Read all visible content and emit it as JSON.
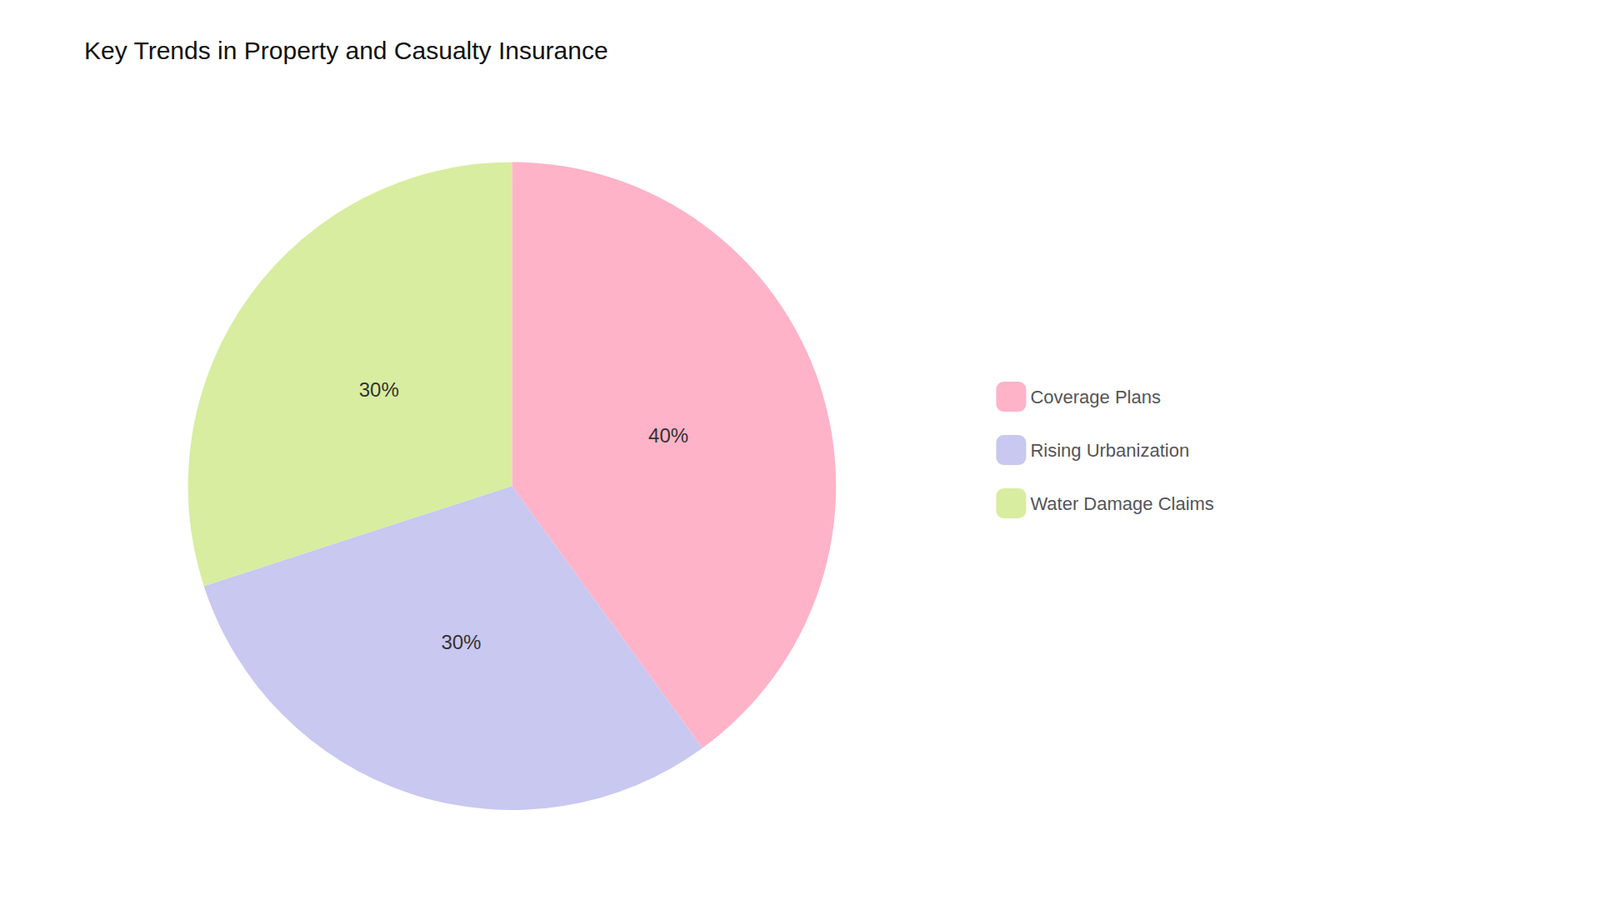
{
  "chart_data": {
    "type": "pie",
    "title": "Key Trends in Property and Casualty Insurance",
    "categories": [
      "Coverage Plans",
      "Rising Urbanization",
      "Water Damage Claims"
    ],
    "values": [
      40,
      30,
      30
    ],
    "value_labels": [
      "40%",
      "30%",
      "30%"
    ],
    "colors": [
      "#FFB3C8",
      "#C8C8F0",
      "#D8EDA0"
    ],
    "data_labels": true,
    "legend": "right"
  }
}
